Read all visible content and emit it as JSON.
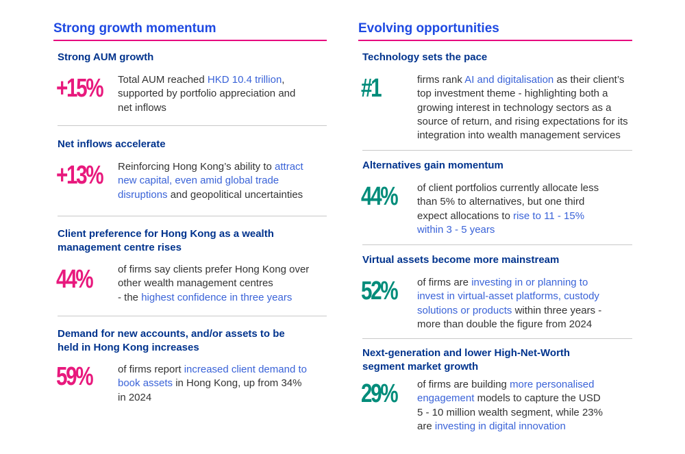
{
  "left": {
    "title": "Strong growth momentum",
    "sections": [
      {
        "title": [
          "Strong AUM growth"
        ],
        "stat": "+15%",
        "desc": [
          [
            {
              "t": "Total AUM reached "
            },
            {
              "t": "HKD 10.4 trillion",
              "h": true
            },
            {
              "t": ","
            }
          ],
          [
            {
              "t": "supported by portfolio appreciation and"
            }
          ],
          [
            {
              "t": "net inflows"
            }
          ]
        ]
      },
      {
        "title": [
          "Net inflows accelerate"
        ],
        "stat": "+13%",
        "desc": [
          [
            {
              "t": "Reinforcing Hong Kong’s ability to "
            },
            {
              "t": "attract",
              "h": true
            }
          ],
          [
            {
              "t": "new capital, even amid global trade",
              "h": true
            }
          ],
          [
            {
              "t": "disruptions",
              "h": true
            },
            {
              "t": " and geopolitical uncertainties"
            }
          ]
        ]
      },
      {
        "title": [
          "Client preference for Hong Kong as a wealth",
          "management centre rises"
        ],
        "stat": "44%",
        "desc": [
          [
            {
              "t": "of firms say clients prefer Hong Kong over"
            }
          ],
          [
            {
              "t": "other wealth management centres"
            }
          ],
          [
            {
              "t": "- the "
            },
            {
              "t": "highest confidence in three years",
              "h": true
            }
          ]
        ]
      },
      {
        "title": [
          "Demand for new accounts, and/or assets to be",
          "held in Hong Kong increases"
        ],
        "stat": "59%",
        "desc": [
          [
            {
              "t": "of firms report "
            },
            {
              "t": "increased client demand to",
              "h": true
            }
          ],
          [
            {
              "t": "book assets",
              "h": true
            },
            {
              "t": " in Hong Kong, up from 34%"
            }
          ],
          [
            {
              "t": "in 2024"
            }
          ]
        ]
      }
    ]
  },
  "right": {
    "title": "Evolving opportunities",
    "sections": [
      {
        "title": [
          "Technology sets the pace"
        ],
        "stat": "#1",
        "desc": [
          [
            {
              "t": "firms rank "
            },
            {
              "t": "AI and digitalisation",
              "h": true
            },
            {
              "t": " as their client’s"
            }
          ],
          [
            {
              "t": "top investment theme - highlighting both a"
            }
          ],
          [
            {
              "t": "growing interest in technology sectors as a"
            }
          ],
          [
            {
              "t": "source of return, and rising expectations for its"
            }
          ],
          [
            {
              "t": "integration into wealth management services"
            }
          ]
        ]
      },
      {
        "title": [
          "Alternatives gain momentum"
        ],
        "stat": "44%",
        "desc": [
          [
            {
              "t": "of client portfolios currently allocate less"
            }
          ],
          [
            {
              "t": "than 5% to alternatives, but one third"
            }
          ],
          [
            {
              "t": "expect allocations to "
            },
            {
              "t": "rise to 11 - 15%",
              "h": true
            }
          ],
          [
            {
              "t": "within 3 - 5 years",
              "h": true
            }
          ]
        ]
      },
      {
        "title": [
          "Virtual assets become more mainstream"
        ],
        "stat": "52%",
        "desc": [
          [
            {
              "t": "of firms are "
            },
            {
              "t": "investing in or planning to",
              "h": true
            }
          ],
          [
            {
              "t": "invest in virtual-asset platforms, custody",
              "h": true
            }
          ],
          [
            {
              "t": "solutions or products",
              "h": true
            },
            {
              "t": " within three years -"
            }
          ],
          [
            {
              "t": "more than double the figure from 2024"
            }
          ]
        ]
      },
      {
        "title": [
          "Next-generation and lower High-Net-Worth",
          "segment market growth"
        ],
        "stat": "29%",
        "desc": [
          [
            {
              "t": "of firms are building "
            },
            {
              "t": "more personalised",
              "h": true
            }
          ],
          [
            {
              "t": "engagement",
              "h": true
            },
            {
              "t": " models to capture the USD"
            }
          ],
          [
            {
              "t": "5 - 10 million wealth segment, while 23%"
            }
          ],
          [
            {
              "t": "are "
            },
            {
              "t": "investing in digital innovation",
              "h": true
            }
          ]
        ]
      }
    ]
  },
  "colors": {
    "heading_blue": "#1e49e2",
    "title_navy": "#00338d",
    "accent_pink": "#e8197d",
    "accent_green": "#008c7a",
    "highlight_blue": "#3a63d8",
    "rule_pink": "#e6007e"
  }
}
